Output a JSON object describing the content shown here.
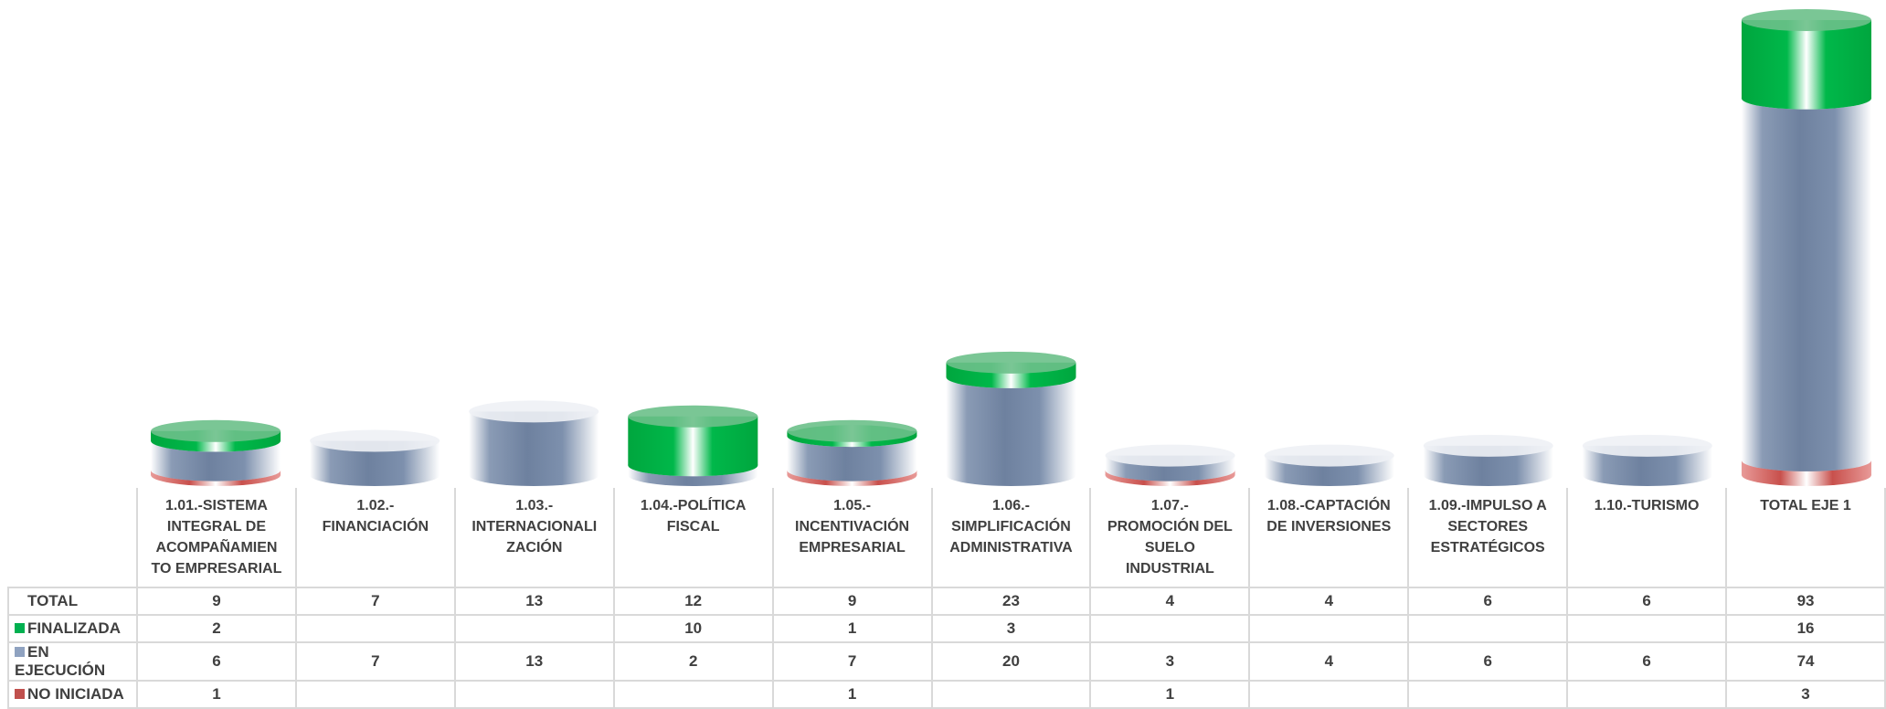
{
  "chart_data": {
    "type": "bar",
    "stacked": true,
    "style": "3d-cylinder",
    "categories": [
      "1.01.-SISTEMA INTEGRAL DE ACOMPAÑAMIENTO EMPRESARIAL",
      "1.02.-FINANCIACIÓN",
      "1.03.-INTERNACIONALIZACIÓN",
      "1.04.-POLÍTICA FISCAL",
      "1.05.-INCENTIVACIÓN EMPRESARIAL",
      "1.06.-SIMPLIFICACIÓN ADMINISTRATIVA",
      "1.07.-PROMOCIÓN DEL SUELO INDUSTRIAL",
      "1.08.-CAPTACIÓN DE INVERSIONES",
      "1.09.-IMPULSO A SECTORES ESTRATÉGICOS",
      "1.10.-TURISMO",
      "TOTAL EJE 1"
    ],
    "category_lines": [
      [
        "1.01.-SISTEMA",
        "INTEGRAL DE",
        "ACOMPAÑAMIEN",
        "TO EMPRESARIAL"
      ],
      [
        "1.02.-",
        "FINANCIACIÓN"
      ],
      [
        "1.03.-",
        "INTERNACIONALI",
        "ZACIÓN"
      ],
      [
        "1.04.-POLÍTICA",
        "FISCAL"
      ],
      [
        "1.05.-",
        "INCENTIVACIÓN",
        "EMPRESARIAL"
      ],
      [
        "1.06.-",
        "SIMPLIFICACIÓN",
        "ADMINISTRATIVA"
      ],
      [
        "1.07.-",
        "PROMOCIÓN DEL",
        "SUELO",
        "INDUSTRIAL"
      ],
      [
        "1.08.-CAPTACIÓN",
        "DE INVERSIONES"
      ],
      [
        "1.09.-IMPULSO A",
        "SECTORES",
        "ESTRATÉGICOS"
      ],
      [
        "1.10.-TURISMO"
      ],
      [
        "TOTAL EJE 1"
      ]
    ],
    "total": {
      "name": "TOTAL",
      "values": [
        9,
        7,
        13,
        12,
        9,
        23,
        4,
        4,
        6,
        6,
        93
      ]
    },
    "series": [
      {
        "name": "NO INICIADA",
        "color": "#c0504d",
        "values": [
          1,
          null,
          null,
          null,
          1,
          null,
          1,
          null,
          null,
          null,
          3
        ]
      },
      {
        "name": "EN EJECUCIÓN",
        "color": "#8fa2c0",
        "values": [
          6,
          7,
          13,
          2,
          7,
          20,
          3,
          4,
          6,
          6,
          74
        ]
      },
      {
        "name": "FINALIZADA",
        "color": "#00b050",
        "values": [
          2,
          null,
          null,
          10,
          1,
          3,
          null,
          null,
          null,
          null,
          16
        ]
      }
    ],
    "table_row_order": [
      "TOTAL",
      "FINALIZADA",
      "EN EJECUCIÓN",
      "NO INICIADA"
    ],
    "ylim": [
      0,
      93
    ],
    "legend": "data-table",
    "grid": false
  }
}
